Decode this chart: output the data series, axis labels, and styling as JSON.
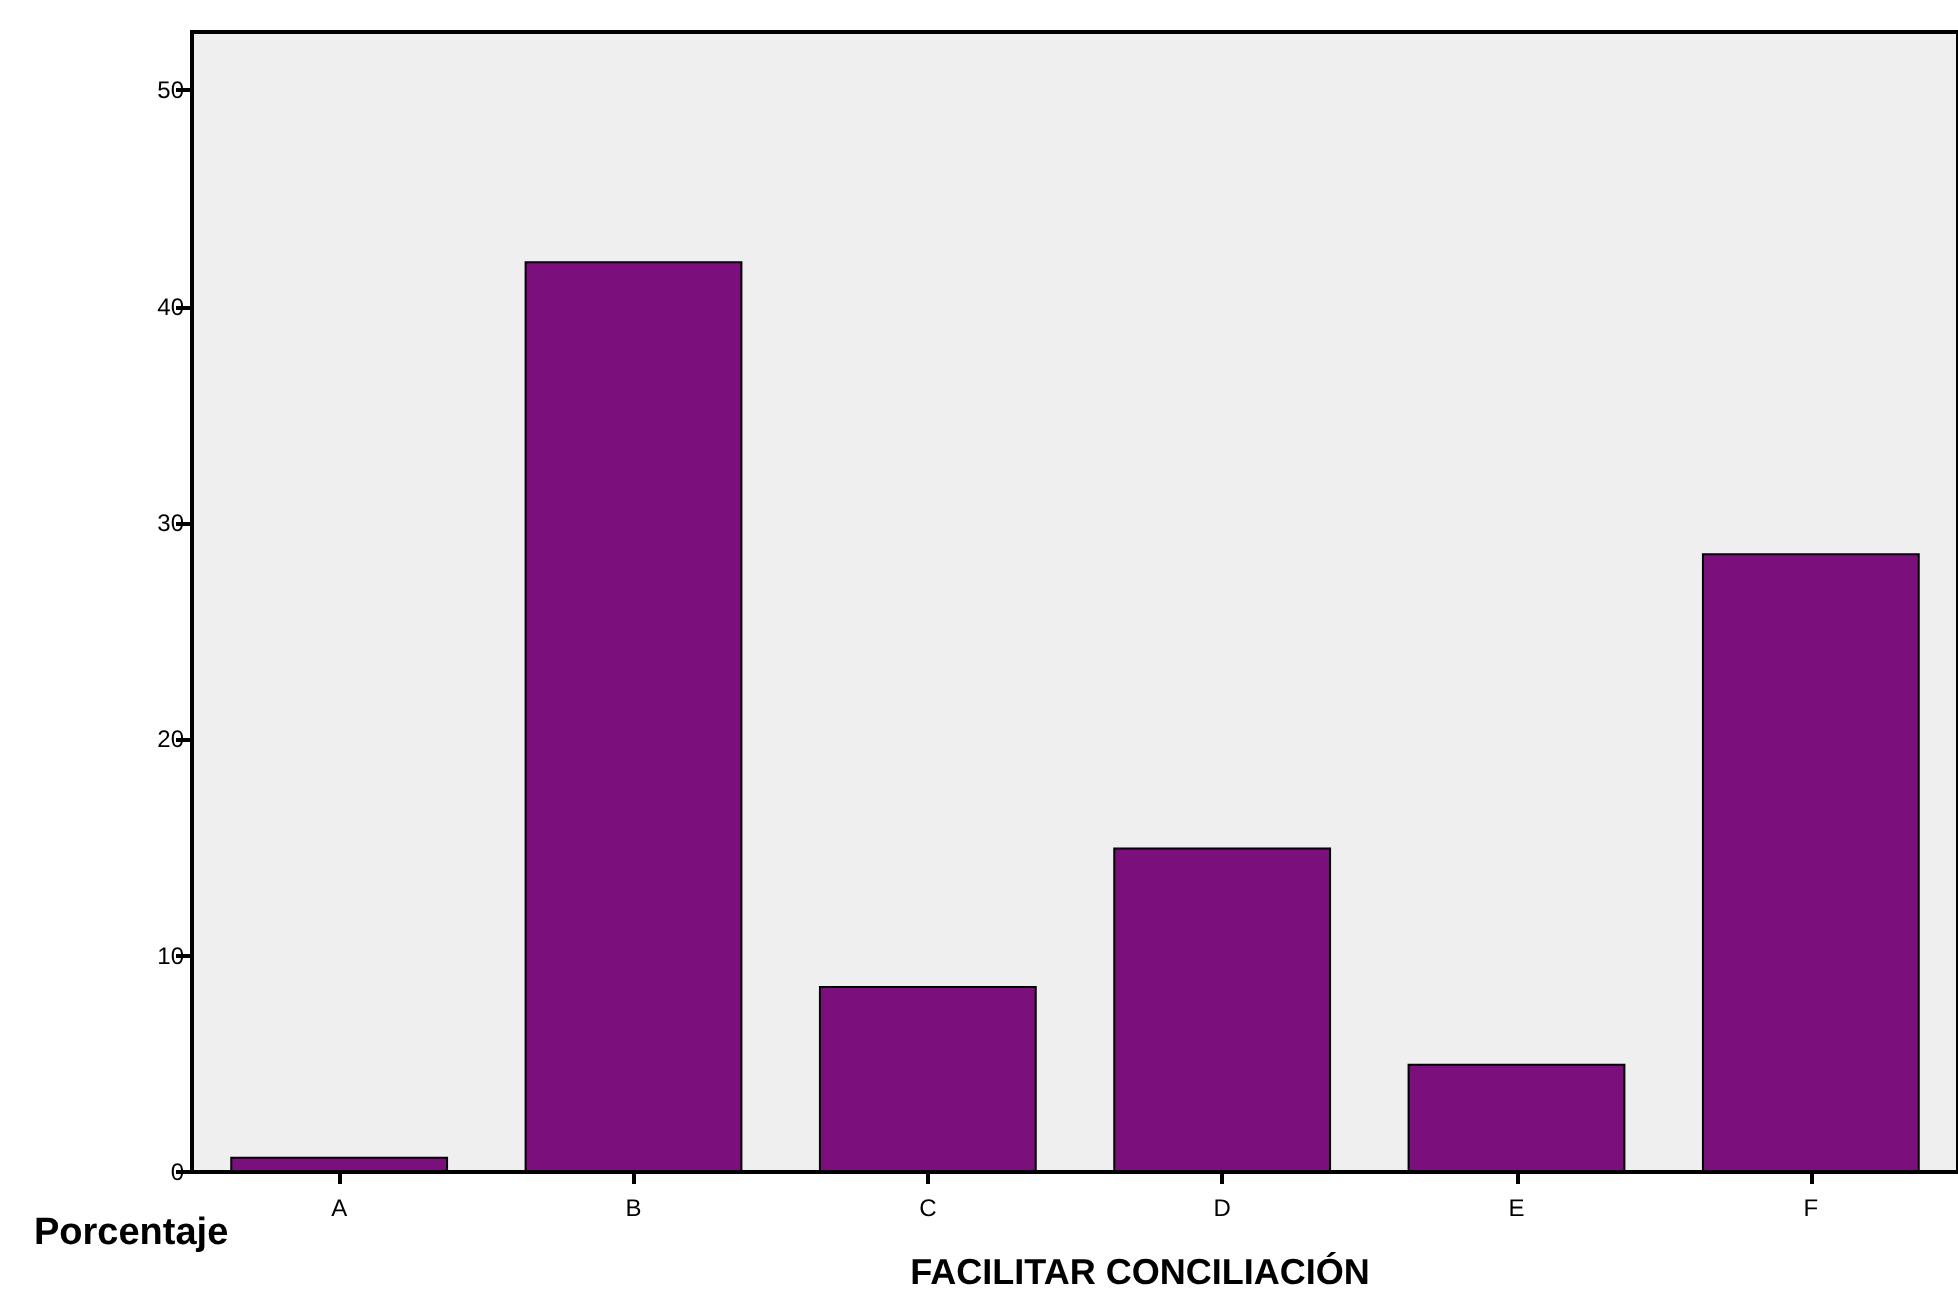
{
  "chart_data": {
    "type": "bar",
    "xlabel": "FACILITAR CONCILIACIÓN",
    "ylabel": "Porcentaje",
    "categories": [
      "A",
      "B",
      "C",
      "D",
      "E",
      "F"
    ],
    "values": [
      0.7,
      42.1,
      8.6,
      15.0,
      5.0,
      28.6
    ],
    "color": "#7b0f7b",
    "ylim": [
      0,
      52.7
    ],
    "yticks": [
      0,
      10,
      20,
      30,
      40,
      50
    ],
    "grid": false
  }
}
